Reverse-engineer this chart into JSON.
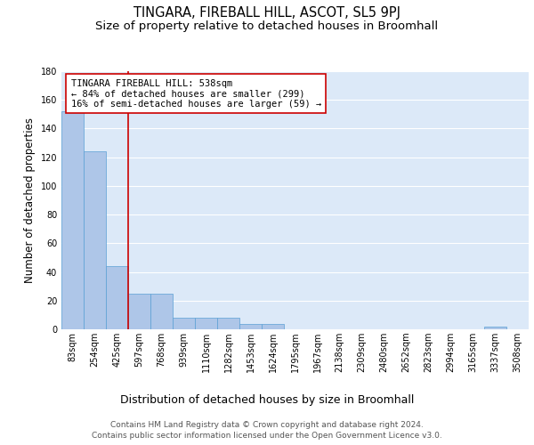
{
  "title": "TINGARA, FIREBALL HILL, ASCOT, SL5 9PJ",
  "subtitle": "Size of property relative to detached houses in Broomhall",
  "xlabel": "Distribution of detached houses by size in Broomhall",
  "ylabel": "Number of detached properties",
  "bin_labels": [
    "83sqm",
    "254sqm",
    "425sqm",
    "597sqm",
    "768sqm",
    "939sqm",
    "1110sqm",
    "1282sqm",
    "1453sqm",
    "1624sqm",
    "1795sqm",
    "1967sqm",
    "2138sqm",
    "2309sqm",
    "2480sqm",
    "2652sqm",
    "2823sqm",
    "2994sqm",
    "3165sqm",
    "3337sqm",
    "3508sqm"
  ],
  "bar_heights": [
    152,
    124,
    44,
    25,
    25,
    8,
    8,
    8,
    4,
    4,
    0,
    0,
    0,
    0,
    0,
    0,
    0,
    0,
    0,
    2,
    0
  ],
  "bar_color": "#aec6e8",
  "bar_edge_color": "#5a9fd4",
  "background_color": "#dce9f8",
  "grid_color": "#ffffff",
  "property_line_bin": 3,
  "property_line_color": "#cc0000",
  "annotation_text": "TINGARA FIREBALL HILL: 538sqm\n← 84% of detached houses are smaller (299)\n16% of semi-detached houses are larger (59) →",
  "annotation_box_color": "#ffffff",
  "annotation_box_edge_color": "#cc0000",
  "ylim": [
    0,
    180
  ],
  "yticks": [
    0,
    20,
    40,
    60,
    80,
    100,
    120,
    140,
    160,
    180
  ],
  "footer_line1": "Contains HM Land Registry data © Crown copyright and database right 2024.",
  "footer_line2": "Contains public sector information licensed under the Open Government Licence v3.0.",
  "title_fontsize": 10.5,
  "subtitle_fontsize": 9.5,
  "ylabel_fontsize": 8.5,
  "xlabel_fontsize": 9,
  "tick_fontsize": 7,
  "annotation_fontsize": 7.5,
  "footer_fontsize": 6.5
}
